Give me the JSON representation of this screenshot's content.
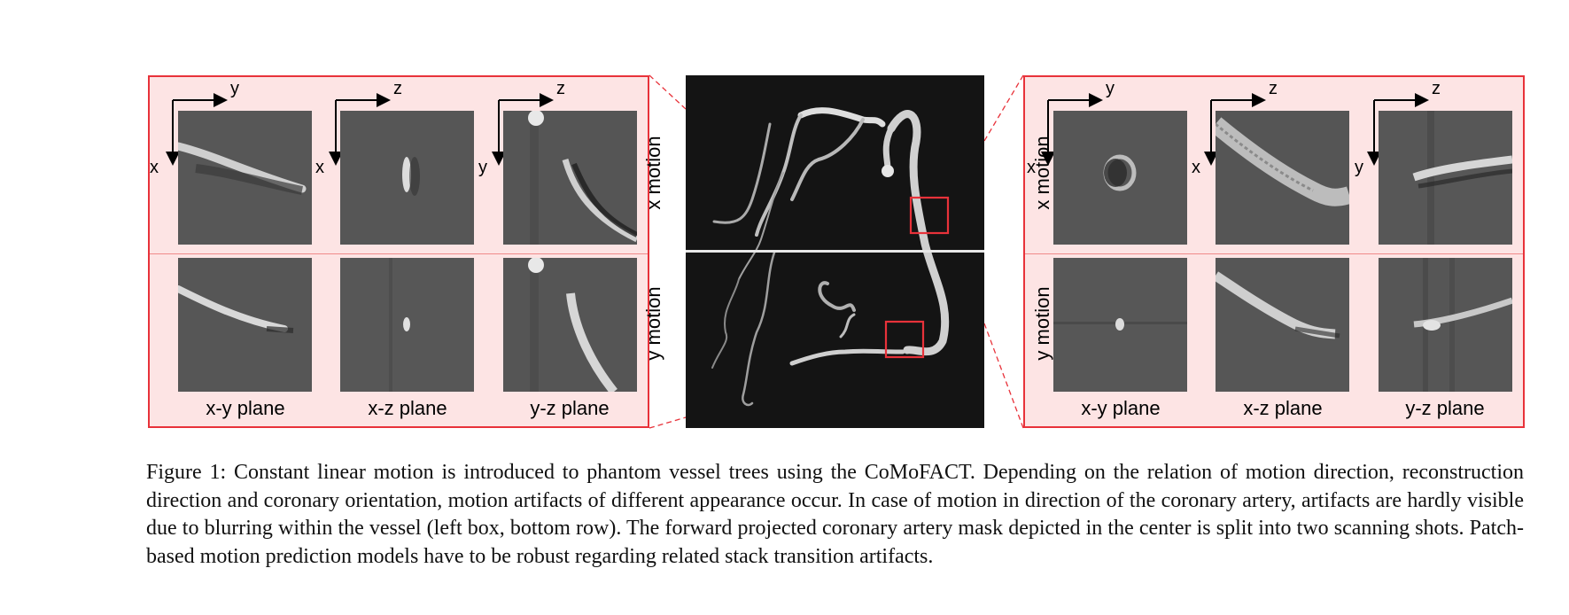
{
  "figure": {
    "left_panel": {
      "axis_labels": [
        {
          "vertical": "x",
          "horizontal": "y"
        },
        {
          "vertical": "x",
          "horizontal": "z"
        },
        {
          "vertical": "y",
          "horizontal": "z"
        }
      ],
      "plane_labels": [
        "x-y plane",
        "x-z plane",
        "y-z plane"
      ],
      "row_labels": [
        "x motion",
        "y motion"
      ]
    },
    "right_panel": {
      "axis_labels": [
        {
          "vertical": "x",
          "horizontal": "y"
        },
        {
          "vertical": "x",
          "horizontal": "z"
        },
        {
          "vertical": "y",
          "horizontal": "z"
        }
      ],
      "plane_labels": [
        "x-y plane",
        "x-z plane",
        "y-z plane"
      ],
      "row_labels": [
        "x motion",
        "y motion"
      ]
    },
    "colors": {
      "panel_border": "#e8323a",
      "panel_fill": "#fde4e4",
      "highlight_box": "#e8323a",
      "center_background": "#141414"
    }
  },
  "caption": {
    "label": "Figure 1:",
    "text": "Constant linear motion is introduced to phantom vessel trees using the CoMoFACT. Depending on the relation of motion direction, reconstruction direction and coronary orientation, motion artifacts of different appearance occur. In case of motion in direction of the coronary artery, artifacts are hardly visible due to blurring within the vessel (left box, bottom row). The forward projected coronary artery mask depicted in the center is split into two scanning shots. Patch-based motion prediction models have to be robust regarding related stack transition artifacts."
  }
}
